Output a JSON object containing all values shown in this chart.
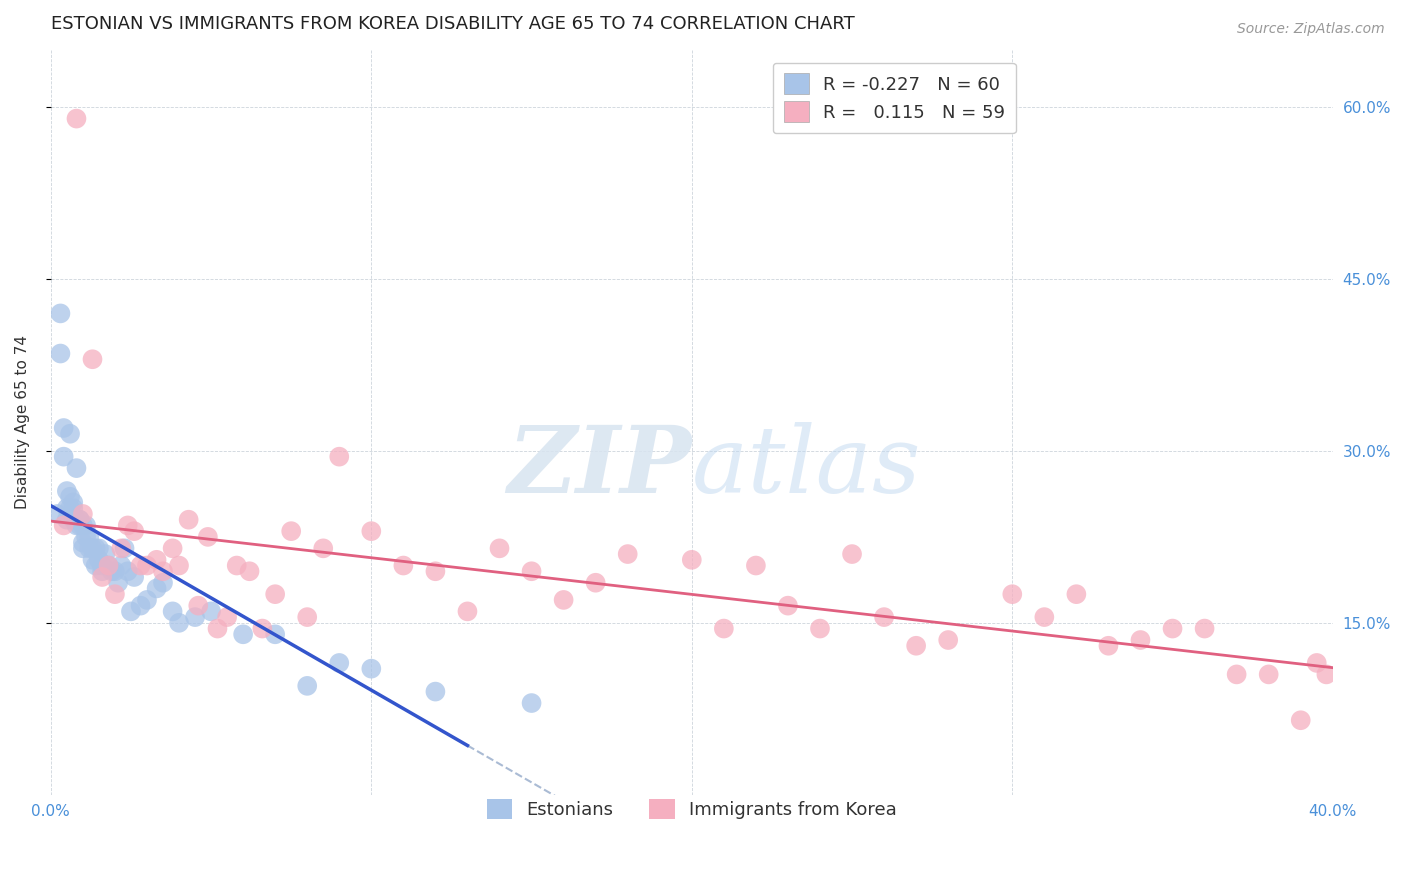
{
  "title": "ESTONIAN VS IMMIGRANTS FROM KOREA DISABILITY AGE 65 TO 74 CORRELATION CHART",
  "source": "Source: ZipAtlas.com",
  "ylabel": "Disability Age 65 to 74",
  "xlim": [
    0.0,
    0.4
  ],
  "ylim": [
    0.0,
    0.65
  ],
  "ytick_right_labels": [
    "15.0%",
    "30.0%",
    "45.0%",
    "60.0%"
  ],
  "ytick_right_vals": [
    0.15,
    0.3,
    0.45,
    0.6
  ],
  "legend_label1": "Estonians",
  "legend_label2": "Immigrants from Korea",
  "color_estonian": "#a8c4e8",
  "color_korean": "#f5afc0",
  "color_line_estonian": "#3355cc",
  "color_line_korean": "#e06080",
  "color_line_dashed": "#aabbd4",
  "background_color": "#ffffff",
  "watermark_zip": "ZIP",
  "watermark_atlas": "atlas",
  "R1": "-0.227",
  "N1": "60",
  "R2": "0.115",
  "N2": "59",
  "title_fontsize": 13,
  "axis_fontsize": 11,
  "tick_fontsize": 11,
  "legend_fontsize": 13,
  "estonian_x": [
    0.002,
    0.003,
    0.003,
    0.004,
    0.004,
    0.005,
    0.005,
    0.005,
    0.006,
    0.006,
    0.006,
    0.007,
    0.007,
    0.007,
    0.008,
    0.008,
    0.008,
    0.009,
    0.009,
    0.009,
    0.01,
    0.01,
    0.01,
    0.011,
    0.011,
    0.012,
    0.012,
    0.013,
    0.013,
    0.014,
    0.014,
    0.015,
    0.015,
    0.016,
    0.016,
    0.017,
    0.018,
    0.019,
    0.02,
    0.021,
    0.022,
    0.023,
    0.024,
    0.025,
    0.026,
    0.028,
    0.03,
    0.033,
    0.035,
    0.038,
    0.04,
    0.045,
    0.05,
    0.06,
    0.07,
    0.08,
    0.09,
    0.1,
    0.12,
    0.15
  ],
  "estonian_y": [
    0.245,
    0.385,
    0.42,
    0.32,
    0.295,
    0.265,
    0.25,
    0.24,
    0.26,
    0.25,
    0.315,
    0.255,
    0.25,
    0.24,
    0.24,
    0.235,
    0.285,
    0.24,
    0.24,
    0.235,
    0.235,
    0.22,
    0.215,
    0.235,
    0.225,
    0.225,
    0.215,
    0.215,
    0.205,
    0.215,
    0.2,
    0.215,
    0.205,
    0.2,
    0.195,
    0.21,
    0.2,
    0.195,
    0.195,
    0.185,
    0.2,
    0.215,
    0.195,
    0.16,
    0.19,
    0.165,
    0.17,
    0.18,
    0.185,
    0.16,
    0.15,
    0.155,
    0.16,
    0.14,
    0.14,
    0.095,
    0.115,
    0.11,
    0.09,
    0.08
  ],
  "korean_x": [
    0.004,
    0.008,
    0.01,
    0.013,
    0.016,
    0.018,
    0.02,
    0.022,
    0.024,
    0.026,
    0.028,
    0.03,
    0.033,
    0.035,
    0.038,
    0.04,
    0.043,
    0.046,
    0.049,
    0.052,
    0.055,
    0.058,
    0.062,
    0.066,
    0.07,
    0.075,
    0.08,
    0.085,
    0.09,
    0.1,
    0.11,
    0.12,
    0.13,
    0.14,
    0.15,
    0.16,
    0.17,
    0.18,
    0.2,
    0.21,
    0.22,
    0.23,
    0.24,
    0.25,
    0.26,
    0.27,
    0.28,
    0.3,
    0.31,
    0.32,
    0.33,
    0.34,
    0.35,
    0.36,
    0.37,
    0.38,
    0.39,
    0.395,
    0.398
  ],
  "korean_y": [
    0.235,
    0.59,
    0.245,
    0.38,
    0.19,
    0.2,
    0.175,
    0.215,
    0.235,
    0.23,
    0.2,
    0.2,
    0.205,
    0.195,
    0.215,
    0.2,
    0.24,
    0.165,
    0.225,
    0.145,
    0.155,
    0.2,
    0.195,
    0.145,
    0.175,
    0.23,
    0.155,
    0.215,
    0.295,
    0.23,
    0.2,
    0.195,
    0.16,
    0.215,
    0.195,
    0.17,
    0.185,
    0.21,
    0.205,
    0.145,
    0.2,
    0.165,
    0.145,
    0.21,
    0.155,
    0.13,
    0.135,
    0.175,
    0.155,
    0.175,
    0.13,
    0.135,
    0.145,
    0.145,
    0.105,
    0.105,
    0.065,
    0.115,
    0.105
  ]
}
